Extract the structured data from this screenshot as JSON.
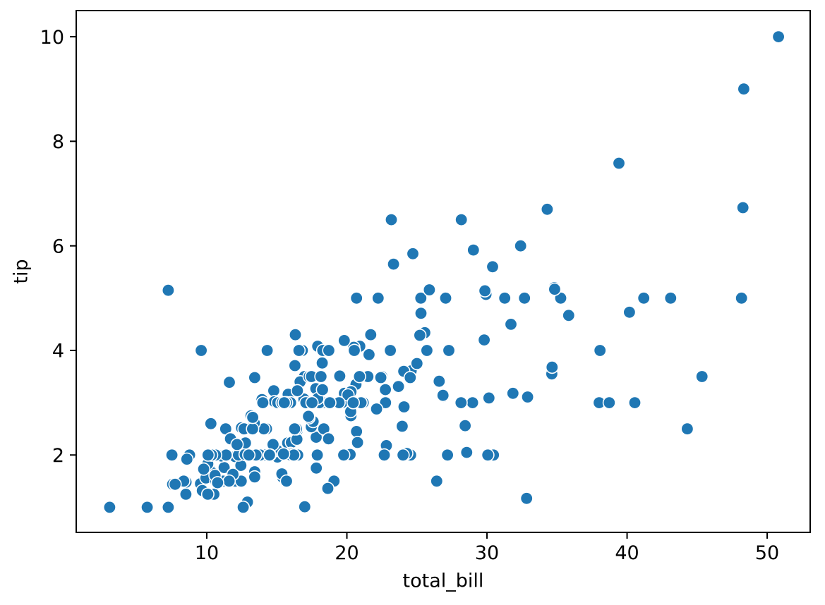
{
  "figure": {
    "background_color": "#ffffff"
  },
  "chart_data": {
    "type": "scatter",
    "title": "",
    "xlabel": "total_bill",
    "ylabel": "tip",
    "xlim": [
      0.68,
      53.07
    ],
    "ylim": [
      0.52,
      10.5
    ],
    "xticks": [
      10,
      20,
      30,
      40,
      50
    ],
    "yticks": [
      2,
      4,
      6,
      8,
      10
    ],
    "grid": false,
    "legend_position": "none",
    "marker_color": "#1f77b4",
    "marker_edge_color": "#ffffff",
    "axis_color": "#000000",
    "tick_label_color": "#000000",
    "points_xy": [
      [
        16.99,
        1.01
      ],
      [
        10.34,
        1.66
      ],
      [
        21.01,
        3.5
      ],
      [
        23.68,
        3.31
      ],
      [
        24.59,
        3.61
      ],
      [
        25.29,
        4.71
      ],
      [
        8.77,
        2.0
      ],
      [
        26.88,
        3.12
      ],
      [
        15.04,
        1.96
      ],
      [
        14.78,
        3.23
      ],
      [
        10.27,
        1.71
      ],
      [
        35.26,
        5.0
      ],
      [
        15.42,
        1.57
      ],
      [
        18.43,
        3.0
      ],
      [
        14.83,
        3.02
      ],
      [
        21.58,
        3.92
      ],
      [
        10.33,
        1.67
      ],
      [
        16.29,
        3.71
      ],
      [
        16.97,
        3.5
      ],
      [
        20.65,
        3.35
      ],
      [
        17.92,
        4.08
      ],
      [
        20.29,
        2.75
      ],
      [
        15.77,
        2.23
      ],
      [
        39.42,
        7.58
      ],
      [
        19.82,
        3.18
      ],
      [
        17.81,
        2.34
      ],
      [
        13.37,
        2.0
      ],
      [
        12.69,
        2.0
      ],
      [
        21.7,
        4.3
      ],
      [
        19.65,
        3.0
      ],
      [
        9.55,
        1.45
      ],
      [
        18.35,
        2.5
      ],
      [
        15.06,
        3.0
      ],
      [
        20.69,
        2.45
      ],
      [
        17.78,
        3.27
      ],
      [
        24.06,
        3.6
      ],
      [
        16.31,
        2.0
      ],
      [
        16.93,
        3.07
      ],
      [
        18.69,
        2.31
      ],
      [
        31.27,
        5.0
      ],
      [
        16.04,
        2.24
      ],
      [
        17.46,
        2.54
      ],
      [
        13.94,
        3.06
      ],
      [
        9.68,
        1.32
      ],
      [
        30.4,
        5.6
      ],
      [
        18.29,
        3.0
      ],
      [
        22.23,
        5.0
      ],
      [
        32.4,
        6.0
      ],
      [
        28.55,
        2.05
      ],
      [
        18.04,
        3.0
      ],
      [
        12.54,
        2.5
      ],
      [
        10.29,
        2.6
      ],
      [
        34.81,
        5.2
      ],
      [
        9.94,
        1.56
      ],
      [
        25.56,
        4.34
      ],
      [
        19.49,
        3.51
      ],
      [
        38.01,
        3.0
      ],
      [
        26.41,
        1.5
      ],
      [
        11.24,
        1.76
      ],
      [
        48.27,
        6.73
      ],
      [
        20.29,
        3.21
      ],
      [
        13.81,
        2.0
      ],
      [
        11.02,
        1.98
      ],
      [
        18.29,
        3.76
      ],
      [
        17.59,
        2.64
      ],
      [
        20.08,
        3.15
      ],
      [
        16.45,
        2.47
      ],
      [
        3.07,
        1.0
      ],
      [
        20.23,
        2.01
      ],
      [
        15.01,
        2.09
      ],
      [
        12.02,
        1.97
      ],
      [
        17.07,
        3.0
      ],
      [
        26.86,
        3.14
      ],
      [
        25.28,
        5.0
      ],
      [
        14.73,
        2.2
      ],
      [
        10.51,
        1.25
      ],
      [
        17.92,
        3.08
      ],
      [
        27.2,
        4.0
      ],
      [
        22.76,
        3.0
      ],
      [
        17.29,
        2.71
      ],
      [
        19.44,
        3.0
      ],
      [
        16.66,
        3.4
      ],
      [
        10.07,
        1.83
      ],
      [
        32.68,
        5.0
      ],
      [
        15.98,
        2.03
      ],
      [
        34.83,
        5.17
      ],
      [
        13.03,
        2.0
      ],
      [
        18.28,
        4.0
      ],
      [
        24.71,
        5.85
      ],
      [
        21.16,
        3.0
      ],
      [
        28.97,
        3.0
      ],
      [
        22.49,
        3.5
      ],
      [
        5.75,
        1.0
      ],
      [
        16.32,
        4.3
      ],
      [
        22.75,
        3.25
      ],
      [
        40.17,
        4.73
      ],
      [
        27.28,
        4.0
      ],
      [
        12.03,
        1.5
      ],
      [
        21.01,
        3.0
      ],
      [
        12.46,
        1.5
      ],
      [
        11.35,
        2.5
      ],
      [
        15.38,
        3.0
      ],
      [
        44.3,
        2.5
      ],
      [
        22.42,
        3.48
      ],
      [
        20.92,
        4.08
      ],
      [
        15.36,
        1.64
      ],
      [
        20.49,
        4.06
      ],
      [
        25.21,
        4.29
      ],
      [
        18.24,
        3.76
      ],
      [
        14.31,
        4.0
      ],
      [
        14.0,
        3.0
      ],
      [
        7.25,
        1.0
      ],
      [
        38.07,
        4.0
      ],
      [
        23.95,
        2.55
      ],
      [
        25.71,
        4.0
      ],
      [
        17.31,
        3.5
      ],
      [
        29.93,
        5.07
      ],
      [
        10.65,
        1.5
      ],
      [
        12.43,
        1.8
      ],
      [
        24.08,
        2.92
      ],
      [
        11.69,
        2.31
      ],
      [
        13.42,
        1.68
      ],
      [
        14.26,
        2.5
      ],
      [
        15.95,
        2.0
      ],
      [
        12.48,
        2.52
      ],
      [
        29.8,
        4.2
      ],
      [
        8.52,
        1.48
      ],
      [
        14.52,
        2.0
      ],
      [
        11.38,
        2.0
      ],
      [
        22.82,
        2.18
      ],
      [
        19.08,
        1.5
      ],
      [
        20.27,
        2.83
      ],
      [
        11.17,
        1.5
      ],
      [
        12.26,
        2.0
      ],
      [
        18.26,
        3.25
      ],
      [
        8.51,
        1.25
      ],
      [
        10.33,
        2.0
      ],
      [
        14.15,
        2.0
      ],
      [
        16.0,
        2.0
      ],
      [
        13.16,
        2.75
      ],
      [
        17.47,
        3.5
      ],
      [
        34.3,
        6.7
      ],
      [
        41.19,
        5.0
      ],
      [
        27.05,
        5.0
      ],
      [
        16.43,
        2.3
      ],
      [
        8.35,
        1.5
      ],
      [
        18.64,
        1.36
      ],
      [
        11.87,
        1.63
      ],
      [
        9.78,
        1.73
      ],
      [
        7.51,
        2.0
      ],
      [
        14.07,
        2.5
      ],
      [
        13.13,
        2.0
      ],
      [
        17.26,
        2.74
      ],
      [
        24.55,
        2.0
      ],
      [
        19.77,
        2.0
      ],
      [
        29.85,
        5.14
      ],
      [
        48.17,
        5.0
      ],
      [
        25.0,
        3.75
      ],
      [
        13.39,
        2.61
      ],
      [
        16.49,
        2.0
      ],
      [
        21.5,
        3.5
      ],
      [
        12.66,
        2.5
      ],
      [
        16.21,
        2.0
      ],
      [
        13.81,
        2.0
      ],
      [
        17.51,
        3.0
      ],
      [
        24.52,
        3.48
      ],
      [
        20.76,
        2.24
      ],
      [
        31.71,
        4.5
      ],
      [
        10.59,
        1.61
      ],
      [
        10.63,
        2.0
      ],
      [
        50.81,
        10.0
      ],
      [
        15.81,
        3.16
      ],
      [
        7.25,
        5.15
      ],
      [
        31.85,
        3.18
      ],
      [
        16.82,
        4.0
      ],
      [
        32.9,
        3.11
      ],
      [
        17.89,
        2.0
      ],
      [
        14.48,
        2.0
      ],
      [
        9.6,
        4.0
      ],
      [
        34.63,
        3.55
      ],
      [
        34.65,
        3.68
      ],
      [
        23.33,
        5.65
      ],
      [
        45.35,
        3.5
      ],
      [
        23.17,
        6.5
      ],
      [
        40.55,
        3.0
      ],
      [
        20.69,
        5.0
      ],
      [
        20.9,
        3.5
      ],
      [
        30.46,
        2.0
      ],
      [
        18.15,
        3.5
      ],
      [
        23.1,
        4.0
      ],
      [
        15.69,
        1.5
      ],
      [
        19.81,
        4.19
      ],
      [
        28.44,
        2.56
      ],
      [
        15.48,
        2.02
      ],
      [
        16.58,
        4.0
      ],
      [
        7.56,
        1.44
      ],
      [
        10.34,
        2.0
      ],
      [
        43.11,
        5.0
      ],
      [
        13.0,
        2.0
      ],
      [
        13.51,
        2.0
      ],
      [
        18.71,
        4.0
      ],
      [
        12.74,
        2.01
      ],
      [
        13.0,
        2.0
      ],
      [
        16.4,
        2.5
      ],
      [
        20.53,
        4.0
      ],
      [
        16.47,
        3.23
      ],
      [
        26.59,
        3.41
      ],
      [
        38.73,
        3.0
      ],
      [
        24.27,
        2.03
      ],
      [
        12.76,
        2.23
      ],
      [
        30.06,
        2.0
      ],
      [
        25.89,
        5.16
      ],
      [
        48.33,
        9.0
      ],
      [
        13.27,
        2.5
      ],
      [
        28.17,
        6.5
      ],
      [
        12.9,
        1.1
      ],
      [
        28.15,
        3.0
      ],
      [
        11.59,
        1.5
      ],
      [
        7.74,
        1.44
      ],
      [
        30.14,
        3.09
      ],
      [
        12.16,
        2.2
      ],
      [
        13.42,
        3.48
      ],
      [
        8.58,
        1.92
      ],
      [
        15.98,
        3.0
      ],
      [
        13.42,
        1.58
      ],
      [
        16.27,
        2.5
      ],
      [
        10.09,
        2.0
      ],
      [
        20.45,
        3.0
      ],
      [
        13.28,
        2.72
      ],
      [
        22.12,
        2.88
      ],
      [
        24.01,
        2.0
      ],
      [
        15.69,
        3.0
      ],
      [
        11.61,
        3.39
      ],
      [
        10.77,
        1.47
      ],
      [
        15.53,
        3.0
      ],
      [
        10.07,
        1.25
      ],
      [
        12.6,
        1.0
      ],
      [
        32.83,
        1.17
      ],
      [
        35.83,
        4.67
      ],
      [
        29.03,
        5.92
      ],
      [
        27.18,
        2.0
      ],
      [
        22.67,
        2.0
      ],
      [
        17.82,
        1.75
      ],
      [
        18.78,
        3.0
      ]
    ]
  }
}
